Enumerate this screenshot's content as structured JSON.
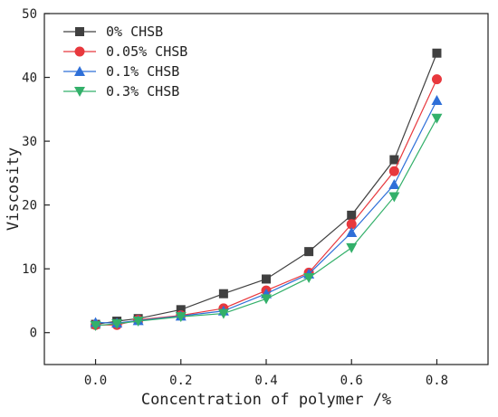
{
  "chart_data": {
    "type": "line",
    "x": [
      0.0,
      0.05,
      0.1,
      0.2,
      0.3,
      0.4,
      0.5,
      0.6,
      0.7,
      0.8
    ],
    "series": [
      {
        "name": "0% CHSB",
        "color": "#404040",
        "marker": "square",
        "values": [
          1.3,
          1.8,
          2.2,
          3.6,
          6.1,
          8.4,
          12.7,
          18.4,
          27.1,
          43.8
        ]
      },
      {
        "name": "0.05% CHSB",
        "color": "#e8383d",
        "marker": "circle",
        "values": [
          1.2,
          1.2,
          2.0,
          2.7,
          3.8,
          6.6,
          9.4,
          17.0,
          25.3,
          39.7
        ]
      },
      {
        "name": "0.1% CHSB",
        "color": "#2e6fd8",
        "marker": "triangle-up",
        "values": [
          1.6,
          1.5,
          1.9,
          2.6,
          3.4,
          6.1,
          9.2,
          15.7,
          23.2,
          36.4
        ]
      },
      {
        "name": "0.3% CHSB",
        "color": "#33b06a",
        "marker": "triangle-down",
        "values": [
          1.1,
          1.4,
          1.8,
          2.5,
          3.0,
          5.3,
          8.6,
          13.3,
          21.3,
          33.6
        ]
      }
    ],
    "xlabel": "Concentration of polymer /%",
    "ylabel": "Viscosity",
    "xlim": [
      -0.12,
      0.92
    ],
    "ylim": [
      -5,
      50
    ],
    "xticks": [
      0.0,
      0.2,
      0.4,
      0.6,
      0.8
    ],
    "xtick_labels": [
      "0.0",
      "0.2",
      "0.4",
      "0.6",
      "0.8"
    ],
    "yticks": [
      0,
      10,
      20,
      30,
      40,
      50
    ],
    "ytick_labels": [
      "0",
      "10",
      "20",
      "30",
      "40",
      "50"
    ],
    "legend_position": "top-left",
    "grid": false
  }
}
